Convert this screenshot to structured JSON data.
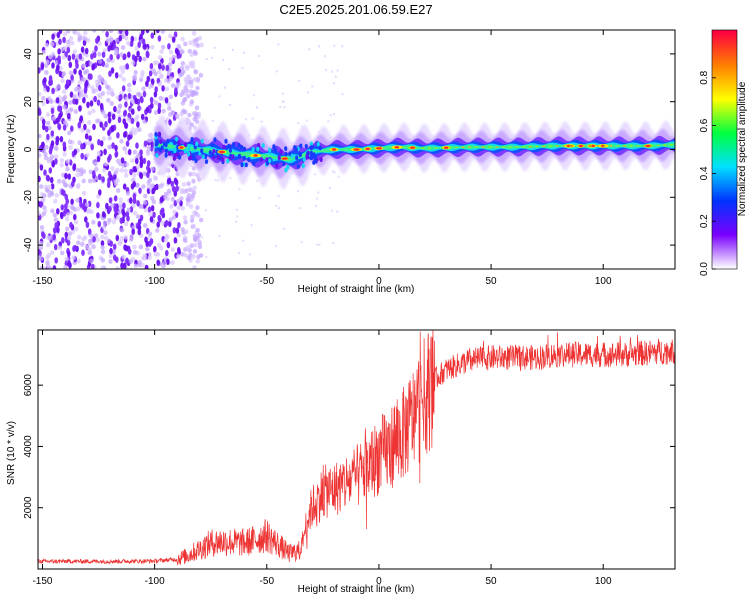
{
  "title": "C2E5.2025.201.06.59.E27",
  "chart_data": [
    {
      "type": "heatmap",
      "xlabel": "Height of straight line (km)",
      "ylabel": "Frequency (Hz)",
      "xlim": [
        -152,
        132
      ],
      "ylim": [
        -50,
        50
      ],
      "x_ticks": [
        -150,
        -100,
        -50,
        0,
        50,
        100
      ],
      "y_ticks": [
        -40,
        -20,
        0,
        20,
        40
      ],
      "colorbar": {
        "label": "Normalized spectral amplitude",
        "range": [
          0,
          1
        ],
        "ticks": [
          "0.0",
          "0.2",
          "0.4",
          "0.6",
          "0.8"
        ],
        "colors": [
          "#ffffff",
          "#7a00ff",
          "#0033ff",
          "#00e0ff",
          "#00ff40",
          "#ffff00",
          "#ff8000",
          "#ff0040"
        ]
      },
      "ridge": {
        "x": [
          -100,
          -90,
          -80,
          -70,
          -60,
          -50,
          -40,
          -35,
          -30,
          -20,
          -10,
          0,
          10,
          20,
          40,
          60,
          80,
          100,
          120,
          132
        ],
        "frequency": [
          2,
          1,
          0,
          -1,
          -2,
          -3,
          -4,
          -3,
          -1,
          0,
          0,
          0.5,
          1,
          0.5,
          1,
          1,
          1.5,
          1.5,
          1.5,
          2
        ]
      },
      "noise_region": [
        -152,
        -85
      ]
    },
    {
      "type": "line",
      "xlabel": "Height of straight line (km)",
      "ylabel": "SNR (10 * v/v)",
      "xlim": [
        -152,
        132
      ],
      "ylim": [
        0,
        7800
      ],
      "x_ticks": [
        -150,
        -100,
        -50,
        0,
        50,
        100
      ],
      "y_ticks": [
        2000,
        4000,
        6000
      ],
      "color": "#ee3333",
      "series": [
        {
          "x": [
            -152,
            -140,
            -120,
            -100,
            -90,
            -85,
            -80,
            -75,
            -70,
            -60,
            -55,
            -50,
            -45,
            -40,
            -35,
            -32,
            -30,
            -25,
            -20,
            -15,
            -10,
            -5,
            0,
            5,
            7,
            10,
            15,
            20,
            25,
            30,
            40,
            50,
            60,
            70,
            80,
            90,
            100,
            110,
            120,
            125,
            132
          ],
          "y": [
            250,
            250,
            250,
            260,
            320,
            450,
            650,
            850,
            900,
            850,
            950,
            1100,
            800,
            500,
            600,
            1600,
            2000,
            2500,
            2600,
            2800,
            3000,
            3300,
            3700,
            3900,
            4200,
            4300,
            4900,
            5600,
            6200,
            6500,
            6800,
            6900,
            6900,
            6900,
            7000,
            7000,
            7000,
            7000,
            7050,
            7100,
            7100
          ]
        }
      ]
    }
  ]
}
